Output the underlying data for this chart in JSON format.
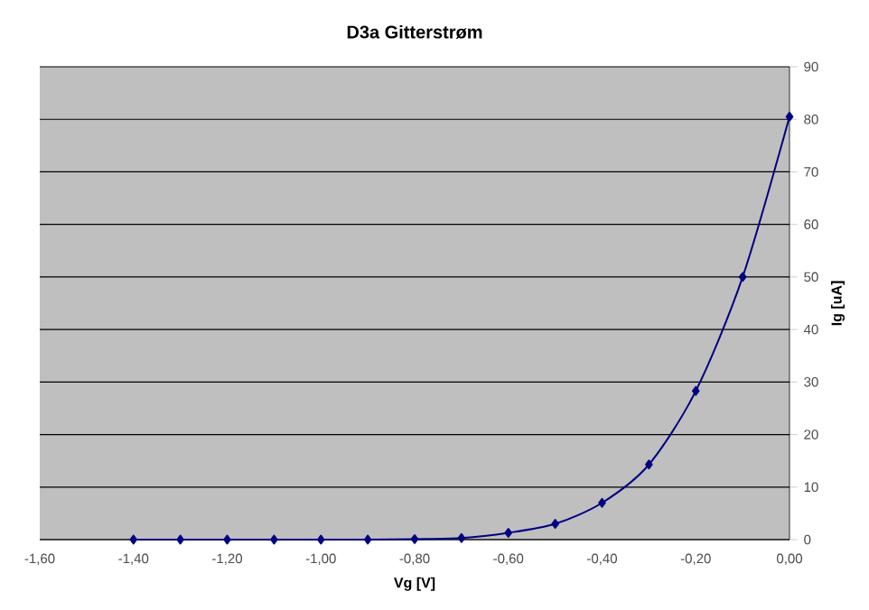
{
  "chart_data": {
    "type": "line",
    "title": "D3a Gitterstrøm",
    "xlabel": "Vg [V]",
    "ylabel": "Ig [uA]",
    "x": [
      -1.4,
      -1.3,
      -1.2,
      -1.1,
      -1.0,
      -0.9,
      -0.8,
      -0.7,
      -0.6,
      -0.5,
      -0.4,
      -0.3,
      -0.2,
      -0.1,
      0.0
    ],
    "series": [
      {
        "color": "#000080",
        "values": [
          0,
          0,
          0,
          0,
          0,
          0,
          0.1,
          0.3,
          1.3,
          3,
          7,
          14.3,
          28.3,
          50,
          80.5
        ]
      }
    ],
    "xlim": [
      -1.6,
      0
    ],
    "ylim": [
      0,
      90
    ],
    "xticks": [
      {
        "value": -1.6,
        "label": "-1,60"
      },
      {
        "value": -1.4,
        "label": "-1,40"
      },
      {
        "value": -1.2,
        "label": "-1,20"
      },
      {
        "value": -1.0,
        "label": "-1,00"
      },
      {
        "value": -0.8,
        "label": "-0,80"
      },
      {
        "value": -0.6,
        "label": "-0,60"
      },
      {
        "value": -0.4,
        "label": "-0,40"
      },
      {
        "value": -0.2,
        "label": "-0,20"
      },
      {
        "value": 0,
        "label": "0,00"
      }
    ],
    "yticks": [
      0,
      10,
      20,
      30,
      40,
      50,
      60,
      70,
      80,
      90
    ],
    "grid": "y",
    "marker": "diamond",
    "line_style": "solid"
  }
}
